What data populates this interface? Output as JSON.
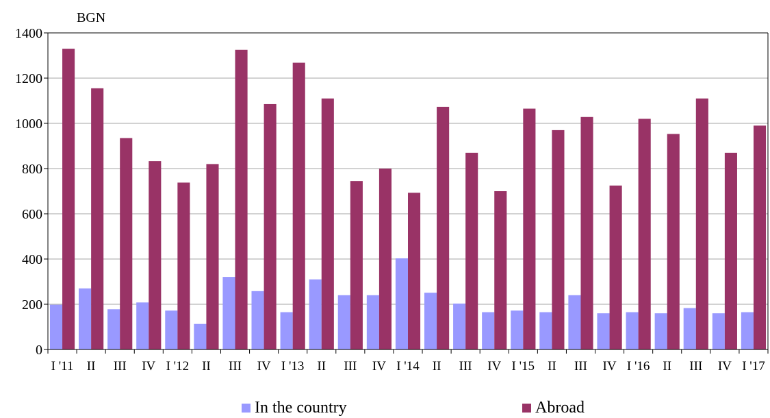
{
  "chart_data": {
    "type": "bar",
    "unit_label": "BGN",
    "categories": [
      "I '11",
      "II",
      "III",
      "IV",
      "I '12",
      "II",
      "III",
      "IV",
      "I '13",
      "II",
      "III",
      "IV",
      "I '14",
      "II",
      "III",
      "IV",
      "I '15",
      "II",
      "III",
      "IV",
      "I '16",
      "II",
      "III",
      "IV",
      "I '17"
    ],
    "series": [
      {
        "name": "In the country",
        "color": "#9999ff",
        "values": [
          198,
          270,
          178,
          208,
          172,
          113,
          321,
          258,
          165,
          310,
          240,
          240,
          403,
          251,
          203,
          165,
          172,
          165,
          240,
          160,
          165,
          160,
          183,
          160,
          165
        ]
      },
      {
        "name": "Abroad",
        "color": "#993366",
        "values": [
          1330,
          1155,
          935,
          833,
          738,
          820,
          1325,
          1085,
          1268,
          1110,
          745,
          800,
          693,
          1073,
          870,
          700,
          1065,
          970,
          1028,
          725,
          1020,
          953,
          1110,
          870,
          990
        ]
      }
    ],
    "yticks": [
      "0",
      "200",
      "400",
      "600",
      "800",
      "1000",
      "1200",
      "1400"
    ],
    "ylim": [
      0,
      1400
    ],
    "grid": true,
    "legend_position": "bottom"
  }
}
